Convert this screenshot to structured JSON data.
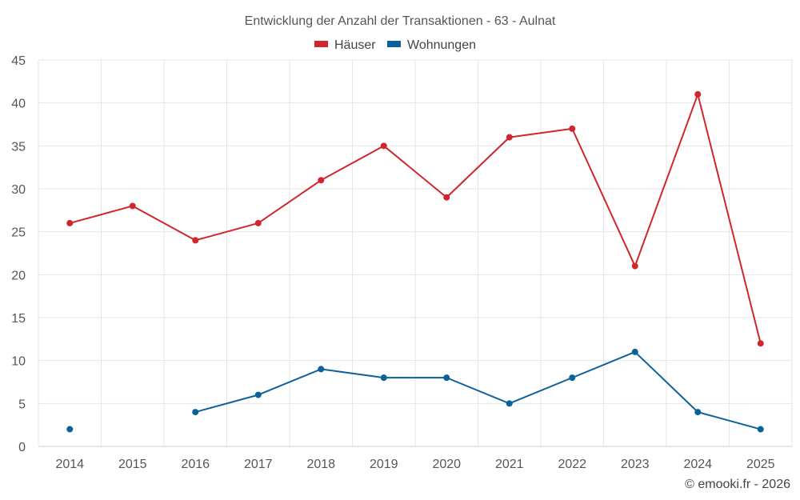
{
  "chart_data": {
    "type": "line",
    "title": "Entwicklung der Anzahl der Transaktionen - 63 - Aulnat",
    "categories": [
      "2014",
      "2015",
      "2016",
      "2017",
      "2018",
      "2019",
      "2020",
      "2021",
      "2022",
      "2023",
      "2024",
      "2025"
    ],
    "series": [
      {
        "name": "Häuser",
        "color": "#d0262d",
        "values": [
          26,
          28,
          24,
          26,
          31,
          35,
          29,
          36,
          37,
          21,
          41,
          12
        ]
      },
      {
        "name": "Wohnungen",
        "color": "#0b6199",
        "values": [
          2,
          null,
          4,
          6,
          9,
          8,
          8,
          5,
          8,
          11,
          4,
          2
        ]
      }
    ],
    "ylim": [
      0,
      45
    ],
    "yticks": [
      0,
      5,
      10,
      15,
      20,
      25,
      30,
      35,
      40,
      45
    ],
    "xlabel": "",
    "ylabel": "",
    "grid": true,
    "legend": "top-center"
  },
  "credit": "© emooki.fr - 2026"
}
